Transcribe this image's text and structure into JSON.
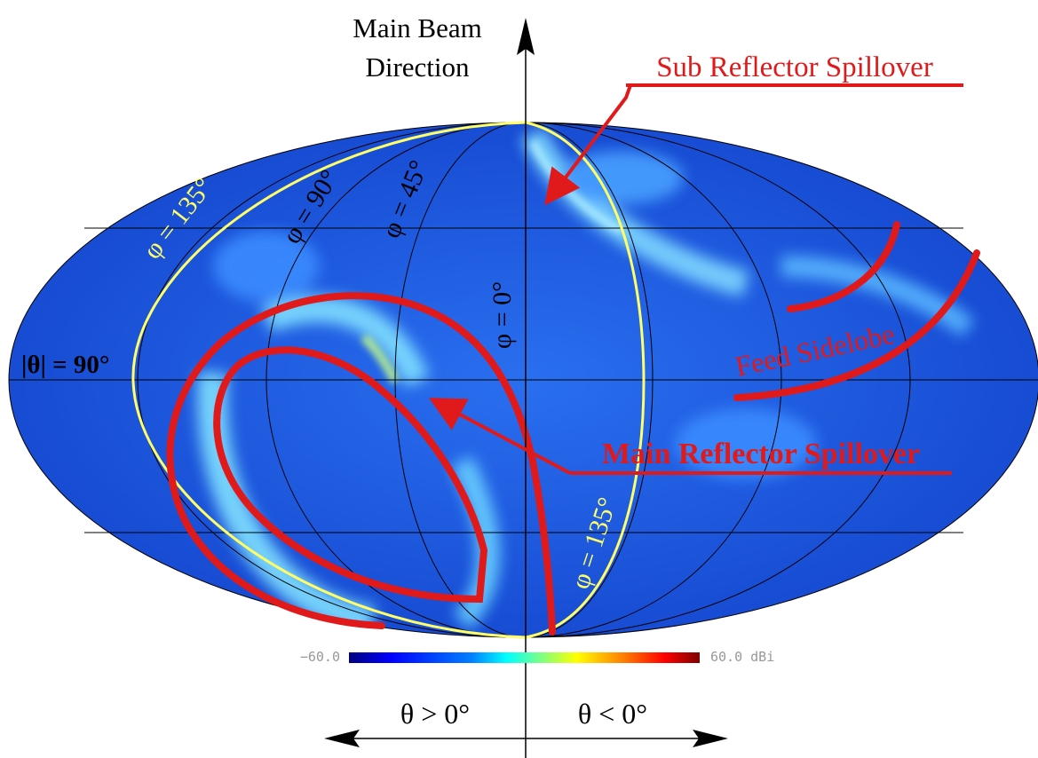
{
  "labels": {
    "main_beam_line1": "Main Beam",
    "main_beam_line2": "Direction",
    "sub_spillover": "Sub Reflector Spillover",
    "main_spillover": "Main Reflector Spillover",
    "feed_sidelobe": "Feed Sidelobe",
    "theta_90": "|θ| = 90°",
    "phi_0": "φ = 0°",
    "phi_45": "φ = 45°",
    "phi_90": "φ = 90°",
    "phi_135_left": "φ = 135°",
    "phi_135_right": "φ = 135°",
    "theta_pos": "θ > 0°",
    "theta_neg": "θ < 0°"
  },
  "colorbar": {
    "min_label": "−60.0",
    "max_label": "60.0 dBi",
    "stops": [
      "#00007f",
      "#0000ff",
      "#0080ff",
      "#00ffff",
      "#80ff80",
      "#ffff00",
      "#ff8000",
      "#ff0000",
      "#7f0000"
    ]
  },
  "colors": {
    "map_base": "#1a5fe0",
    "highlight": "#e01a1a",
    "phi_135_curve": "#ffff66",
    "grid": "#000000"
  }
}
